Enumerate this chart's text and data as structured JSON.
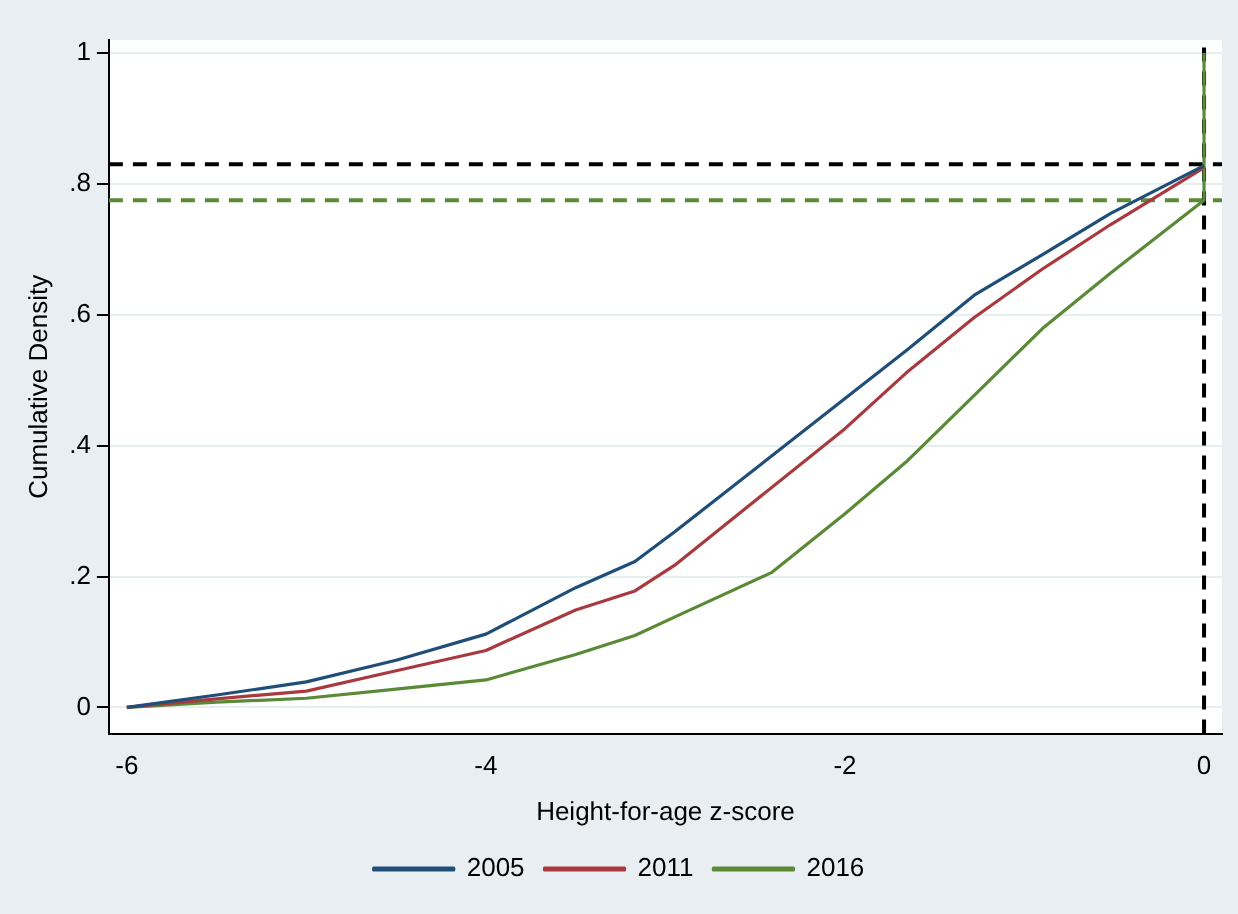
{
  "chart_data": {
    "type": "line",
    "xlabel": "Height-for-age z-score",
    "ylabel": "Cumulative Density",
    "xlim": [
      -6.1,
      0.1
    ],
    "xticks": [
      -6,
      -4,
      -2,
      0
    ],
    "ylim": [
      -0.04,
      1.02
    ],
    "yticks": [
      0,
      {
        "value": 0.2,
        "label": ".2"
      },
      {
        "value": 0.4,
        "label": ".4"
      },
      {
        "value": 0.6,
        "label": ".6"
      },
      {
        "value": 0.8,
        "label": ".8"
      },
      1
    ],
    "grid": "y",
    "legend": "bottom",
    "marker": "none",
    "line_style": "solid",
    "series": [
      {
        "name": "2005",
        "color": "#1f4e79",
        "x": [
          -6,
          -5.5,
          -5,
          -4.5,
          -4,
          -3.5,
          -3.17,
          -2.95,
          -2,
          -1.66,
          -1.28,
          -0.9,
          -0.52,
          0
        ],
        "values": [
          0,
          0.019,
          0.039,
          0.072,
          0.112,
          0.183,
          0.223,
          0.268,
          0.472,
          0.545,
          0.63,
          0.692,
          0.755,
          0.828
        ]
      },
      {
        "name": "2011",
        "color": "#a83a3f",
        "x": [
          -6,
          -5.5,
          -5,
          -4.5,
          -4,
          -3.5,
          -3.17,
          -2.95,
          -2,
          -1.66,
          -1.28,
          -0.9,
          -0.52,
          0
        ],
        "values": [
          0,
          0.013,
          0.025,
          0.056,
          0.087,
          0.149,
          0.178,
          0.217,
          0.426,
          0.511,
          0.596,
          0.67,
          0.738,
          0.825
        ]
      },
      {
        "name": "2016",
        "color": "#5a8a35",
        "x": [
          -6,
          -5.5,
          -5,
          -4.5,
          -4,
          -3.5,
          -3.17,
          -2.95,
          -2.41,
          -2,
          -1.66,
          -1.28,
          -0.9,
          -0.52,
          0,
          0
        ],
        "values": [
          0,
          0.008,
          0.014,
          0.028,
          0.042,
          0.081,
          0.11,
          0.138,
          0.206,
          0.296,
          0.375,
          0.477,
          0.579,
          0.664,
          0.775,
          1
        ]
      }
    ],
    "ref_lines": [
      {
        "axis": "y",
        "value": 0.83,
        "color": "#000000",
        "line_style": "dashed"
      },
      {
        "axis": "y",
        "value": 0.775,
        "color": "#5a8a35",
        "line_style": "dashed"
      },
      {
        "axis": "x",
        "value": 0,
        "color": "#000000",
        "line_style": "dashed"
      }
    ]
  }
}
